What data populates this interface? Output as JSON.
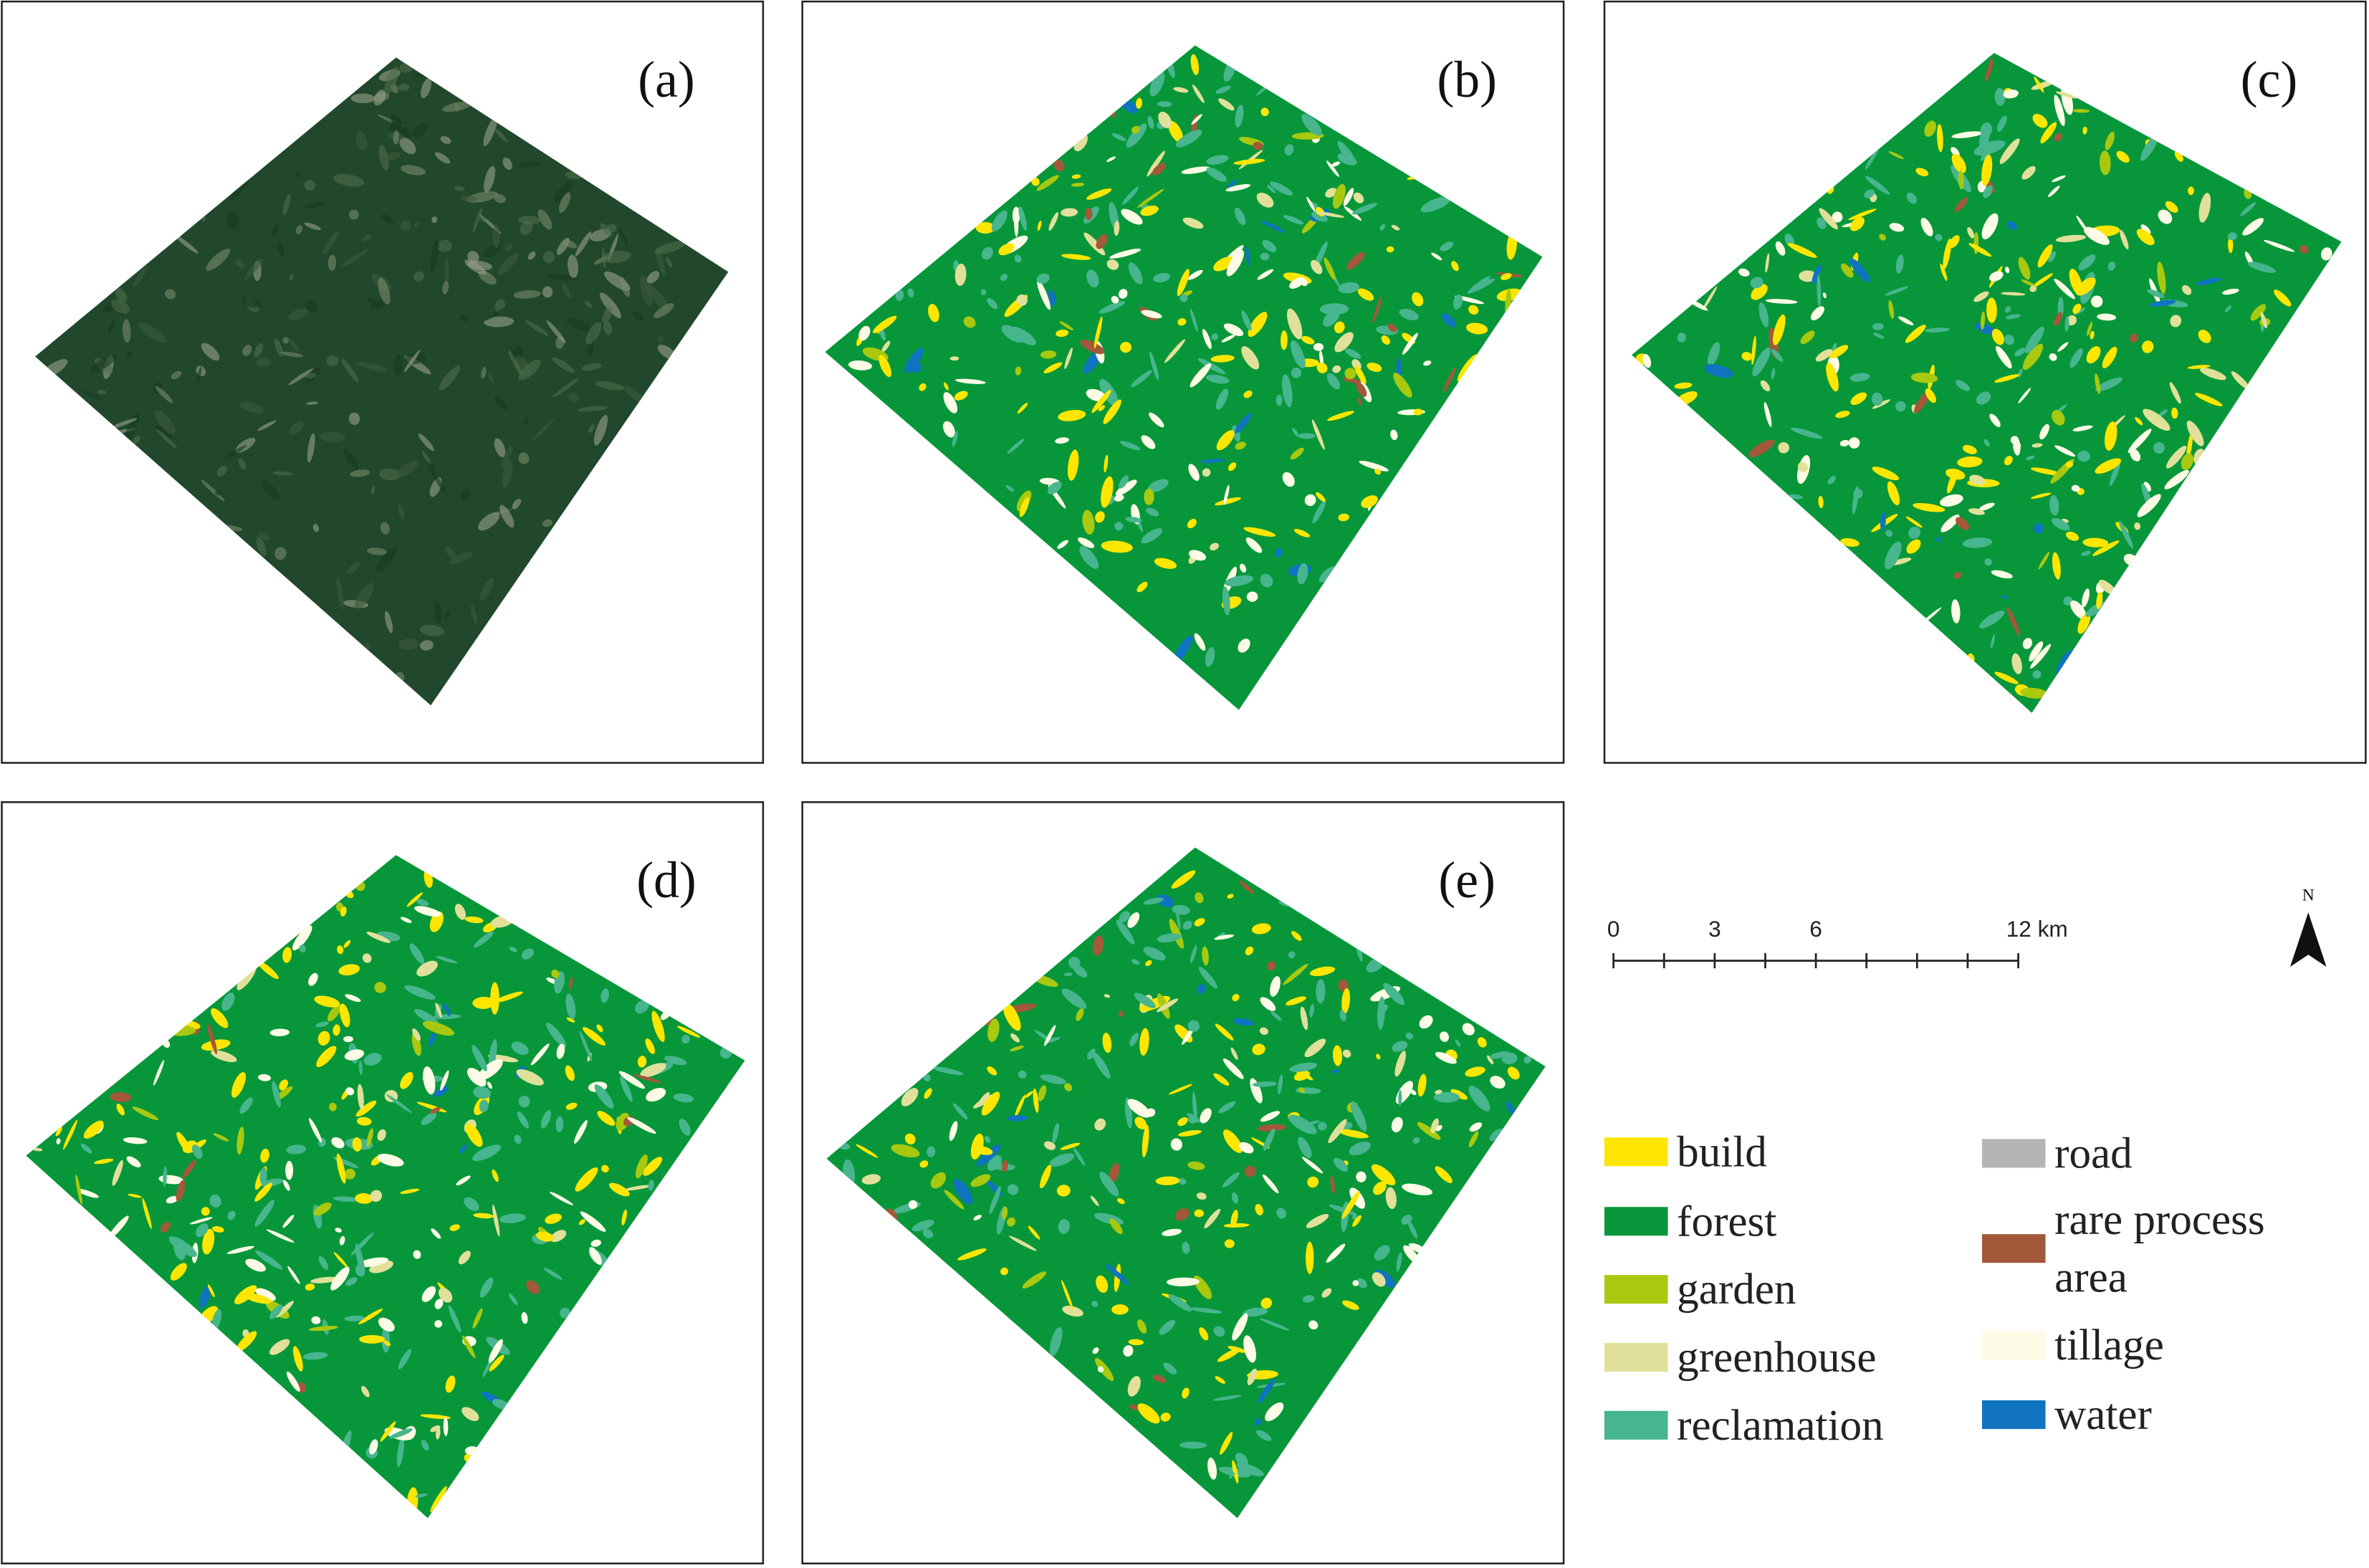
{
  "panels": [
    {
      "label": "(a)",
      "kind": "image"
    },
    {
      "label": "(b)",
      "kind": "classified"
    },
    {
      "label": "(c)",
      "kind": "classified"
    },
    {
      "label": "(d)",
      "kind": "classified"
    },
    {
      "label": "(e)",
      "kind": "classified"
    }
  ],
  "scale_bar": {
    "labels": [
      "0",
      "3",
      "6",
      "12 km"
    ]
  },
  "north_arrow": {
    "label": "N"
  },
  "legend": [
    {
      "lines": [
        "build"
      ],
      "color": "#ffe600"
    },
    {
      "lines": [
        "forest"
      ],
      "color": "#07973a"
    },
    {
      "lines": [
        "garden"
      ],
      "color": "#a8c90f"
    },
    {
      "lines": [
        "greenhouse"
      ],
      "color": "#e1e09a"
    },
    {
      "lines": [
        "reclamation"
      ],
      "color": "#47b58d"
    },
    {
      "lines": [
        "road"
      ],
      "color": "#b4b4b4"
    },
    {
      "lines": [
        "rare process",
        "area"
      ],
      "color": "#a3583a"
    },
    {
      "lines": [
        "tillage"
      ],
      "color": "#fdfbe6"
    },
    {
      "lines": [
        "water"
      ],
      "color": "#0f73c0"
    }
  ]
}
